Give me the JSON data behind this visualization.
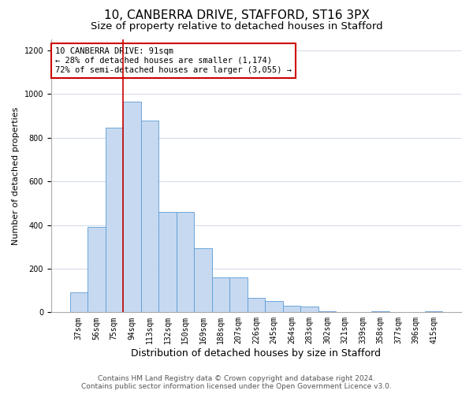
{
  "title": "10, CANBERRA DRIVE, STAFFORD, ST16 3PX",
  "subtitle": "Size of property relative to detached houses in Stafford",
  "xlabel": "Distribution of detached houses by size in Stafford",
  "ylabel": "Number of detached properties",
  "categories": [
    "37sqm",
    "56sqm",
    "75sqm",
    "94sqm",
    "113sqm",
    "132sqm",
    "150sqm",
    "169sqm",
    "188sqm",
    "207sqm",
    "226sqm",
    "245sqm",
    "264sqm",
    "283sqm",
    "302sqm",
    "321sqm",
    "339sqm",
    "358sqm",
    "377sqm",
    "396sqm",
    "415sqm"
  ],
  "values": [
    90,
    390,
    845,
    965,
    880,
    460,
    460,
    295,
    160,
    160,
    65,
    50,
    30,
    25,
    5,
    0,
    0,
    5,
    0,
    0,
    5
  ],
  "bar_color": "#c6d9f1",
  "bar_edge_color": "#5b9bd5",
  "red_line_index": 3,
  "annotation_text": "10 CANBERRA DRIVE: 91sqm\n← 28% of detached houses are smaller (1,174)\n72% of semi-detached houses are larger (3,055) →",
  "annotation_box_color": "#ffffff",
  "annotation_box_edge": "#cc0000",
  "red_line_color": "#cc0000",
  "ylim": [
    0,
    1250
  ],
  "yticks": [
    0,
    200,
    400,
    600,
    800,
    1000,
    1200
  ],
  "background_color": "#ffffff",
  "grid_color": "#d0d8e8",
  "footer_line1": "Contains HM Land Registry data © Crown copyright and database right 2024.",
  "footer_line2": "Contains public sector information licensed under the Open Government Licence v3.0.",
  "title_fontsize": 11,
  "subtitle_fontsize": 9.5,
  "xlabel_fontsize": 9,
  "ylabel_fontsize": 8,
  "tick_fontsize": 7,
  "annotation_fontsize": 7.5,
  "footer_fontsize": 6.5
}
